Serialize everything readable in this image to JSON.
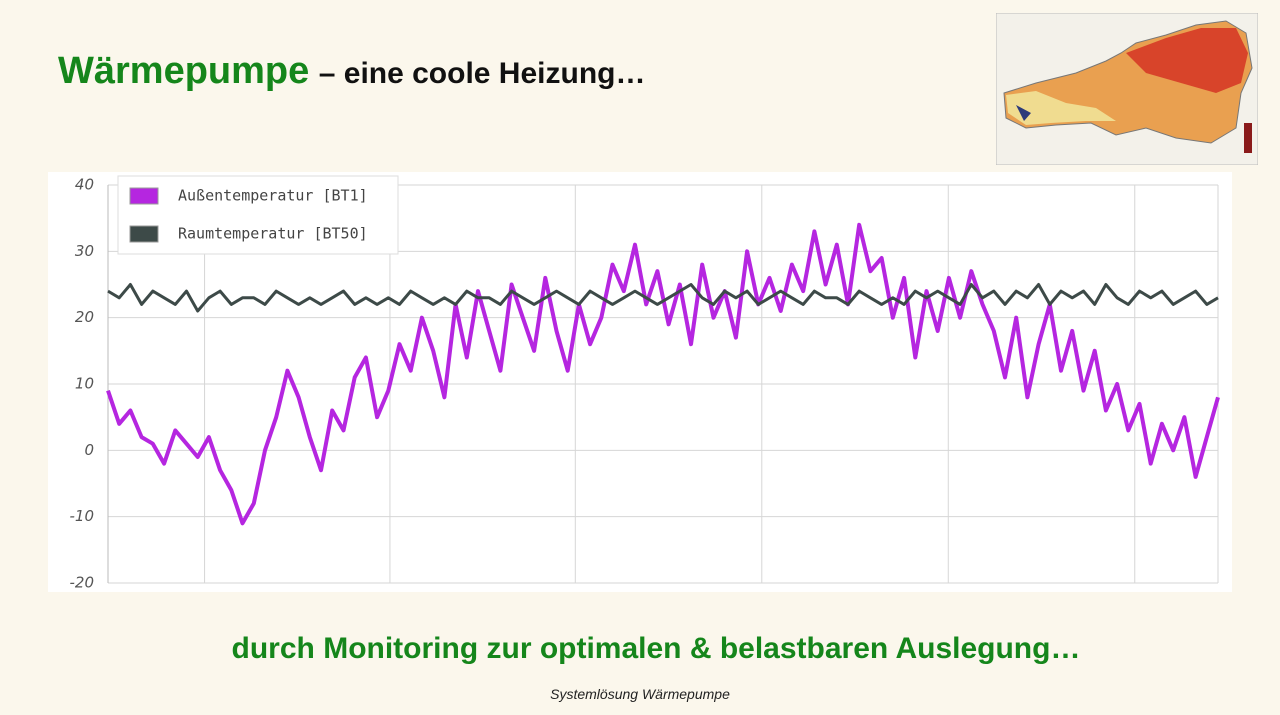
{
  "slide": {
    "title_main": "Wärmepumpe",
    "title_rest": "– eine coole Heizung…",
    "subtitle": "durch Monitoring zur optimalen & belastbaren Auslegung…",
    "footer": "Systemlösung Wärmepumpe"
  },
  "chart_data": {
    "type": "line",
    "series": [
      {
        "name": "Außentemperatur [BT1]",
        "color": "#b526e0",
        "values": [
          9,
          4,
          6,
          2,
          1,
          -2,
          3,
          1,
          -1,
          2,
          -3,
          -6,
          -11,
          -8,
          0,
          5,
          12,
          8,
          2,
          -3,
          6,
          3,
          11,
          14,
          5,
          9,
          16,
          12,
          20,
          15,
          8,
          22,
          14,
          24,
          18,
          12,
          25,
          20,
          15,
          26,
          18,
          12,
          22,
          16,
          20,
          28,
          24,
          31,
          22,
          27,
          19,
          25,
          16,
          28,
          20,
          24,
          17,
          30,
          22,
          26,
          21,
          28,
          24,
          33,
          25,
          31,
          22,
          34,
          27,
          29,
          20,
          26,
          14,
          24,
          18,
          26,
          20,
          27,
          22,
          18,
          11,
          20,
          8,
          16,
          22,
          12,
          18,
          9,
          15,
          6,
          10,
          3,
          7,
          -2,
          4,
          0,
          5,
          -4,
          2,
          8
        ]
      },
      {
        "name": "Raumtemperatur [BT50]",
        "color": "#3d4a48",
        "values": [
          24,
          23,
          25,
          22,
          24,
          23,
          22,
          24,
          21,
          23,
          24,
          22,
          23,
          23,
          22,
          24,
          23,
          22,
          23,
          22,
          23,
          24,
          22,
          23,
          22,
          23,
          22,
          24,
          23,
          22,
          23,
          22,
          24,
          23,
          23,
          22,
          24,
          23,
          22,
          23,
          24,
          23,
          22,
          24,
          23,
          22,
          23,
          24,
          23,
          22,
          23,
          24,
          25,
          23,
          22,
          24,
          23,
          24,
          22,
          23,
          24,
          23,
          22,
          24,
          23,
          23,
          22,
          24,
          23,
          22,
          23,
          22,
          24,
          23,
          24,
          23,
          22,
          25,
          23,
          24,
          22,
          24,
          23,
          25,
          22,
          24,
          23,
          24,
          22,
          25,
          23,
          22,
          24,
          23,
          24,
          22,
          23,
          24,
          22,
          23
        ]
      }
    ],
    "ylim": [
      -20,
      40
    ],
    "yticks": [
      -20,
      -10,
      0,
      10,
      20,
      30,
      40
    ],
    "grid": true,
    "legend": "top-left"
  }
}
